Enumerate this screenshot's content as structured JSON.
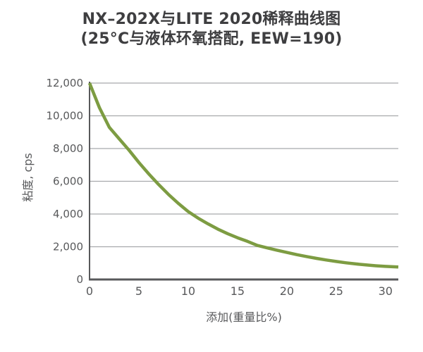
{
  "header": {
    "title_line1": "NX–202X与LITE 2020稀释曲线图",
    "title_line2": "(25°C与液体环氧搭配, EEW=190)"
  },
  "colors": {
    "curve": "#7d9c42",
    "axis": "#58595b",
    "grid": "#a7a9ac",
    "title_text": "#3e3e40",
    "tick_text": "#58595b",
    "background": "#ffffff"
  },
  "chart_data": {
    "type": "line",
    "title": "NX–202X与LITE 2020稀释曲线图 (25°C与液体环氧搭配, EEW=190)",
    "xlabel": "添加(重量比%)",
    "ylabel": "粘度, cps",
    "xlim": [
      0,
      31.3
    ],
    "ylim": [
      0,
      12000
    ],
    "xticks": [
      0,
      5,
      10,
      15,
      20,
      25,
      30
    ],
    "ytick_values": [
      0,
      2000,
      4000,
      6000,
      8000,
      10000,
      12000
    ],
    "ytick_labels": [
      "0",
      "2,000",
      "4,000",
      "6,000",
      "8,000",
      "10,000",
      "12,000"
    ],
    "grid": "horizontal",
    "legend": "none",
    "series": [
      {
        "name": "NX-202X",
        "color": "#7d9c42",
        "x": [
          0,
          1,
          2,
          3,
          4,
          5,
          6,
          7,
          8,
          9,
          10,
          11,
          12,
          13,
          14,
          15,
          16,
          17,
          18,
          19,
          20,
          21,
          22,
          23,
          24,
          25,
          26,
          27,
          28,
          29,
          30,
          31.3
        ],
        "y": [
          12000,
          10500,
          9300,
          8600,
          7900,
          7150,
          6450,
          5800,
          5200,
          4650,
          4150,
          3750,
          3400,
          3080,
          2800,
          2550,
          2330,
          2080,
          1930,
          1790,
          1650,
          1520,
          1400,
          1290,
          1190,
          1100,
          1020,
          950,
          890,
          840,
          800,
          760
        ]
      }
    ]
  }
}
